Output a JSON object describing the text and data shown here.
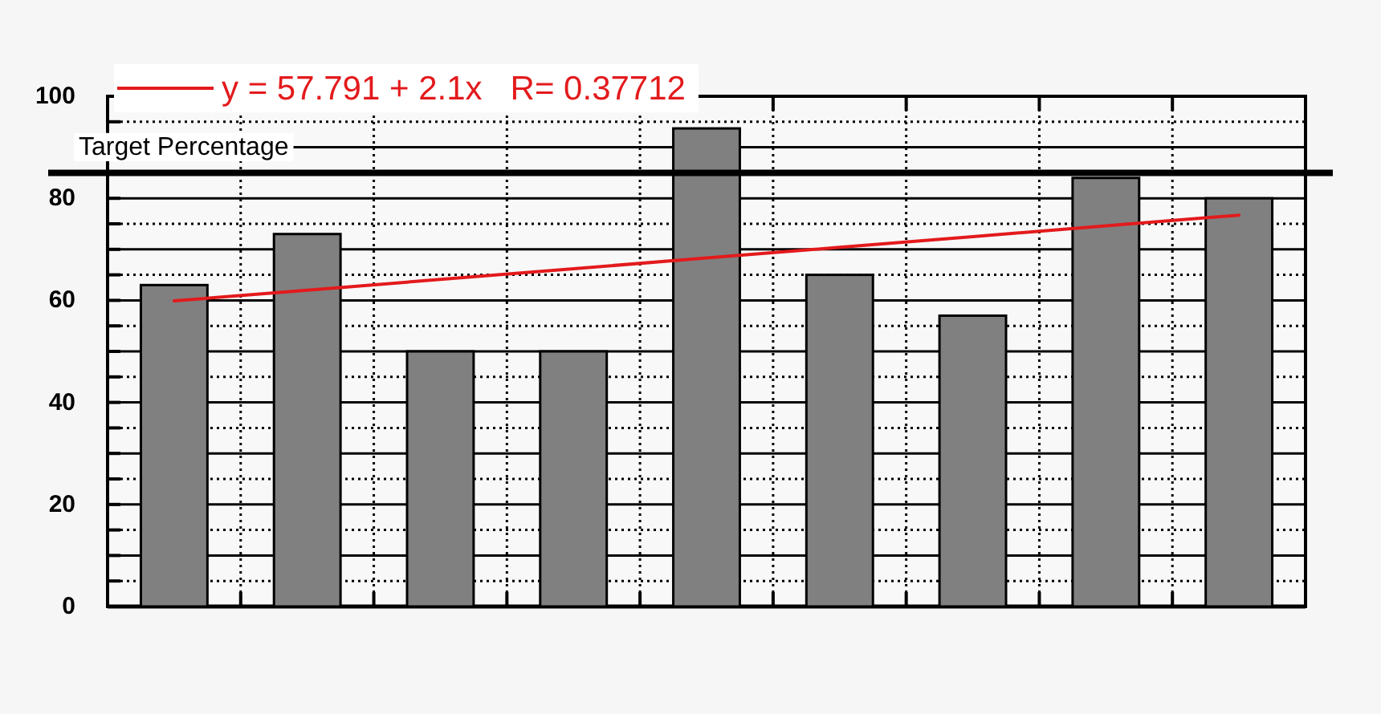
{
  "chart_data": {
    "type": "bar",
    "categories": [
      null,
      null,
      null,
      null,
      null,
      null,
      null,
      null,
      null
    ],
    "series": [
      {
        "type": "bar",
        "color": "#808080",
        "values": [
          63,
          73,
          50,
          50,
          93.7,
          65,
          57,
          84,
          80
        ]
      },
      {
        "type": "line",
        "name": "y = 57.791 + 2.1x   R= 0.37712",
        "color": "#e31a1c",
        "values": [
          59.9,
          62.0,
          64.1,
          66.2,
          68.3,
          70.4,
          72.5,
          74.6,
          76.7
        ]
      }
    ],
    "ylim": [
      0,
      100
    ],
    "yticks": [
      0,
      {
        "value": 5,
        "label": null
      },
      {
        "value": 10,
        "label": null
      },
      {
        "value": 15,
        "label": null
      },
      20,
      {
        "value": 25,
        "label": null
      },
      {
        "value": 30,
        "label": null
      },
      {
        "value": 35,
        "label": null
      },
      40,
      {
        "value": 45,
        "label": null
      },
      {
        "value": 50,
        "label": null
      },
      {
        "value": 55,
        "label": null
      },
      60,
      {
        "value": 65,
        "label": null
      },
      {
        "value": 70,
        "label": null
      },
      {
        "value": 75,
        "label": null
      },
      80,
      {
        "value": 85,
        "label": null
      },
      {
        "value": 90,
        "label": null
      },
      {
        "value": 95,
        "label": null
      },
      100
    ],
    "grid": true,
    "legend": "top left",
    "tick_labels": "y",
    "ref_lines": [
      {
        "axis": "y",
        "value": 85,
        "label": "Target Percentage",
        "color": "#000000"
      }
    ]
  }
}
